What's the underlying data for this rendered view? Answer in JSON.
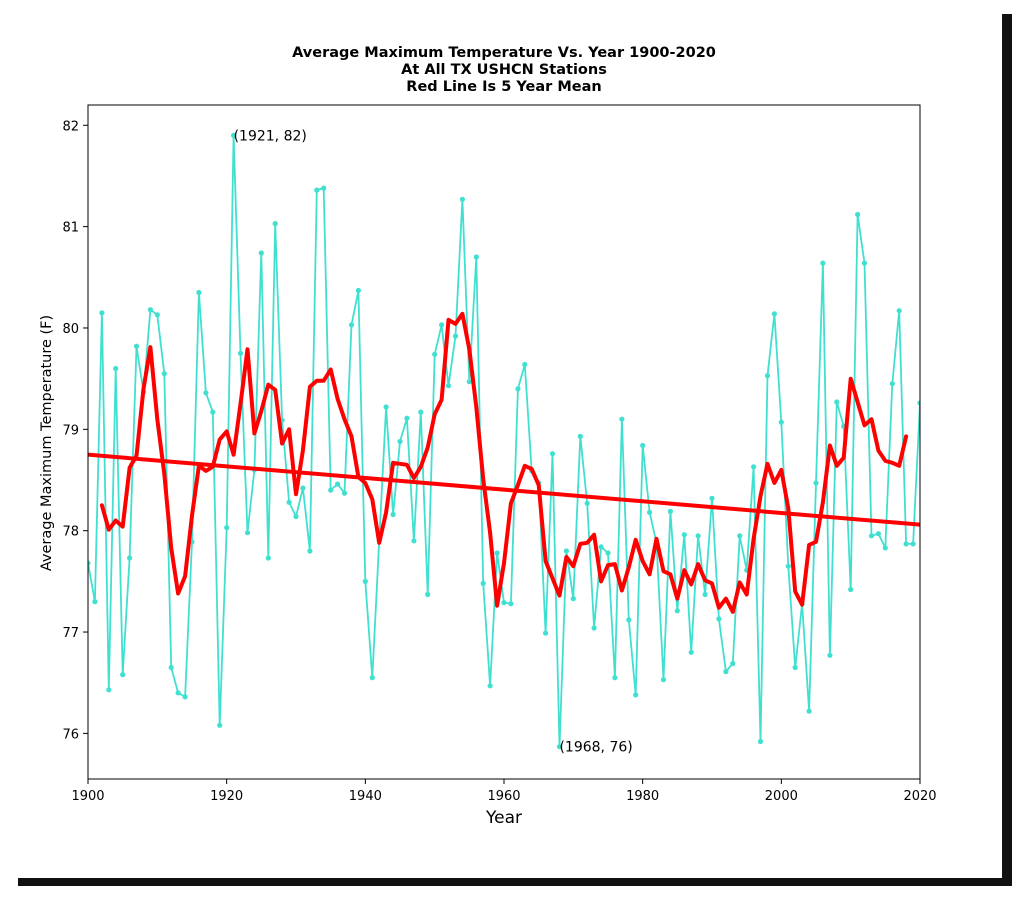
{
  "colors": {
    "raw_series": "#40e0d0",
    "mean_series": "#ff0000",
    "trend_line": "#ff0000",
    "axes": "#000000",
    "background": "#ffffff"
  },
  "chart_data": {
    "type": "line",
    "title": [
      "Average Maximum Temperature Vs. Year 1900-2020",
      "At All TX USHCN Stations",
      "Red Line Is 5 Year Mean"
    ],
    "xlabel": "Year",
    "ylabel": "Average Maximum Temperature (F)",
    "xlim": [
      1900,
      2020
    ],
    "ylim": [
      75.55,
      82.2
    ],
    "xticks": [
      1900,
      1920,
      1940,
      1960,
      1980,
      2000,
      2020
    ],
    "yticks": [
      76,
      77,
      78,
      79,
      80,
      81,
      82
    ],
    "grid": false,
    "annotations": [
      {
        "text": "(1921, 82)",
        "x": 1921,
        "y": 81.9
      },
      {
        "text": "(1968, 76)",
        "x": 1968,
        "y": 75.87
      }
    ],
    "series": [
      {
        "x": [
          1900,
          1901,
          1902,
          1903,
          1904,
          1905,
          1906,
          1907,
          1908,
          1909,
          1910,
          1911,
          1912,
          1913,
          1914,
          1915,
          1916,
          1917,
          1918,
          1919,
          1920,
          1921,
          1922,
          1923,
          1924,
          1925,
          1926,
          1927,
          1928,
          1929,
          1930,
          1931,
          1932,
          1933,
          1934,
          1935,
          1936,
          1937,
          1938,
          1939,
          1940,
          1941,
          1942,
          1943,
          1944,
          1945,
          1946,
          1947,
          1948,
          1949,
          1950,
          1951,
          1952,
          1953,
          1954,
          1955,
          1956,
          1957,
          1958,
          1959,
          1960,
          1961,
          1962,
          1963,
          1964,
          1965,
          1966,
          1967,
          1968,
          1969,
          1970,
          1971,
          1972,
          1973,
          1974,
          1975,
          1976,
          1977,
          1978,
          1979,
          1980,
          1981,
          1982,
          1983,
          1984,
          1985,
          1986,
          1987,
          1988,
          1989,
          1990,
          1991,
          1992,
          1993,
          1994,
          1995,
          1996,
          1997,
          1998,
          1999,
          2000,
          2001,
          2002,
          2003,
          2004,
          2005,
          2006,
          2007,
          2008,
          2009,
          2010,
          2011,
          2012,
          2013,
          2014,
          2015,
          2016,
          2017,
          2018,
          2019,
          2020
        ],
        "values": [
          77.68,
          77.3,
          80.15,
          76.43,
          79.6,
          76.58,
          77.73,
          79.82,
          79.37,
          80.18,
          80.13,
          79.55,
          76.65,
          76.4,
          76.36,
          77.89,
          80.35,
          79.36,
          79.17,
          76.08,
          78.03,
          81.9,
          79.75,
          77.98,
          78.6,
          80.74,
          77.73,
          81.03,
          79.09,
          78.28,
          78.14,
          78.42,
          77.8,
          81.36,
          81.38,
          78.4,
          78.46,
          78.37,
          80.03,
          80.37,
          77.5,
          76.55,
          77.9,
          79.22,
          78.16,
          78.88,
          79.11,
          77.9,
          79.17,
          77.37,
          79.74,
          80.03,
          79.43,
          79.92,
          81.27,
          79.47,
          80.7,
          77.48,
          76.47,
          77.78,
          77.29,
          77.28,
          79.4,
          79.64,
          78.59,
          78.47,
          76.99,
          78.76,
          75.87,
          77.8,
          77.33,
          78.93,
          78.27,
          77.04,
          77.84,
          77.78,
          76.55,
          79.1,
          77.12,
          76.38,
          78.84,
          78.18,
          77.88,
          76.53,
          78.19,
          77.21,
          77.96,
          76.8,
          77.95,
          77.37,
          78.32,
          77.13,
          76.61,
          76.69,
          77.95,
          77.61,
          78.63,
          75.92,
          79.53,
          80.14,
          79.07,
          77.65,
          76.65,
          77.28,
          76.22,
          78.47,
          80.64,
          76.77,
          79.27,
          79.03,
          77.42,
          81.12,
          80.64,
          77.95,
          77.97,
          77.83,
          79.45,
          80.17,
          77.87,
          77.87,
          79.26
        ]
      },
      {
        "name": "5 Year Mean",
        "x": [
          1902,
          1903,
          1904,
          1905,
          1906,
          1907,
          1908,
          1909,
          1910,
          1911,
          1912,
          1913,
          1914,
          1915,
          1916,
          1917,
          1918,
          1919,
          1920,
          1921,
          1922,
          1923,
          1924,
          1925,
          1926,
          1927,
          1928,
          1929,
          1930,
          1931,
          1932,
          1933,
          1934,
          1935,
          1936,
          1937,
          1938,
          1939,
          1940,
          1941,
          1942,
          1943,
          1944,
          1945,
          1946,
          1947,
          1948,
          1949,
          1950,
          1951,
          1952,
          1953,
          1954,
          1955,
          1956,
          1957,
          1958,
          1959,
          1960,
          1961,
          1962,
          1963,
          1964,
          1965,
          1966,
          1967,
          1968,
          1969,
          1970,
          1971,
          1972,
          1973,
          1974,
          1975,
          1976,
          1977,
          1978,
          1979,
          1980,
          1981,
          1982,
          1983,
          1984,
          1985,
          1986,
          1987,
          1988,
          1989,
          1990,
          1991,
          1992,
          1993,
          1994,
          1995,
          1996,
          1997,
          1998,
          1999,
          2000,
          2001,
          2002,
          2003,
          2004,
          2005,
          2006,
          2007,
          2008,
          2009,
          2010,
          2011,
          2012,
          2013,
          2014,
          2015,
          2016,
          2017,
          2018
        ],
        "values": [
          78.25,
          78.01,
          78.1,
          78.04,
          78.62,
          78.74,
          79.4,
          79.81,
          79.1,
          78.56,
          77.83,
          77.38,
          77.55,
          78.15,
          78.64,
          78.59,
          78.63,
          78.9,
          78.98,
          78.75,
          79.25,
          79.79,
          78.96,
          79.18,
          79.44,
          79.39,
          78.86,
          79.0,
          78.36,
          78.79,
          79.42,
          79.48,
          79.48,
          79.59,
          79.3,
          79.1,
          78.93,
          78.53,
          78.47,
          78.31,
          77.88,
          78.18,
          78.67,
          78.66,
          78.65,
          78.52,
          78.63,
          78.82,
          79.15,
          79.29,
          80.08,
          80.04,
          80.14,
          79.79,
          79.22,
          78.51,
          77.98,
          77.26,
          77.68,
          78.27,
          78.45,
          78.64,
          78.61,
          78.45,
          77.7,
          77.53,
          77.36,
          77.74,
          77.65,
          77.87,
          77.88,
          77.96,
          77.5,
          77.66,
          77.67,
          77.41,
          77.64,
          77.91,
          77.7,
          77.57,
          77.92,
          77.6,
          77.57,
          77.33,
          77.61,
          77.47,
          77.67,
          77.51,
          77.48,
          77.24,
          77.33,
          77.2,
          77.49,
          77.37,
          77.92,
          78.34,
          78.66,
          78.47,
          78.6,
          78.22,
          77.4,
          77.27,
          77.86,
          77.89,
          78.28,
          78.84,
          78.64,
          78.72,
          79.5,
          79.27,
          79.04,
          79.1,
          78.79,
          78.69,
          78.67,
          78.64,
          78.93
        ]
      },
      {
        "x": [
          1900,
          2020
        ],
        "values": [
          78.75,
          78.06
        ]
      }
    ]
  }
}
